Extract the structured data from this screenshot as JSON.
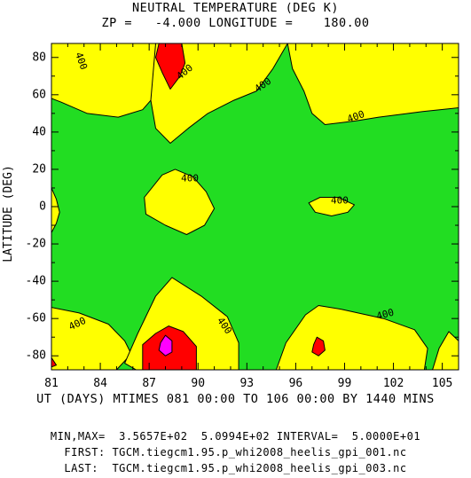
{
  "chart_data": {
    "type": "contour",
    "title": "NEUTRAL TEMPERATURE (DEG K)",
    "subtitle": "ZP =   -4.000 LONGITUDE =    180.00",
    "xlabel": "UT (DAYS) MTIMES 081 00:00 TO 106 00:00 BY 1440 MINS",
    "ylabel": "LATITUDE (DEG)",
    "xlim": [
      81,
      106
    ],
    "ylim": [
      -87.5,
      87.5
    ],
    "x_ticks": [
      81,
      84,
      87,
      90,
      93,
      96,
      99,
      102,
      105
    ],
    "x_tick_labels": [
      "81",
      "84",
      "87",
      "90",
      "93",
      "96",
      "99",
      "102",
      "105"
    ],
    "y_ticks": [
      80,
      60,
      40,
      20,
      0,
      -20,
      -40,
      -60,
      -80
    ],
    "y_tick_labels": [
      "80",
      "60",
      "40",
      "20",
      "0",
      "-20",
      "-40",
      "-60",
      "-80"
    ],
    "contour_interval": 50,
    "levels": [
      {
        "range": "< 400",
        "color": "#22dd22"
      },
      {
        "range": "400-450",
        "color": "#ffff00"
      },
      {
        "range": "450-500",
        "color": "#ff0000"
      },
      {
        "range": "> 500",
        "color": "#ff00ff"
      }
    ],
    "regions": [
      {
        "level": "400-450",
        "polygon": [
          [
            81,
            87.5
          ],
          [
            87.4,
            87.5
          ],
          [
            87.4,
            60
          ],
          [
            86.6,
            52
          ],
          [
            85.1,
            48
          ],
          [
            83.2,
            50
          ],
          [
            81.6,
            56
          ],
          [
            81,
            58
          ]
        ]
      },
      {
        "level": "400-450",
        "polygon": [
          [
            87.4,
            87.5
          ],
          [
            95.5,
            87.5
          ],
          [
            94.6,
            74
          ],
          [
            93.6,
            62
          ],
          [
            92.2,
            57
          ],
          [
            90.6,
            50
          ],
          [
            89.4,
            42
          ],
          [
            88.3,
            34
          ],
          [
            87.4,
            42
          ],
          [
            87.1,
            57
          ]
        ]
      },
      {
        "level": "400-450",
        "polygon": [
          [
            95.5,
            87.5
          ],
          [
            106,
            87.5
          ],
          [
            106,
            53
          ],
          [
            103.8,
            51
          ],
          [
            101.1,
            48
          ],
          [
            99.7,
            46
          ],
          [
            97.8,
            44
          ],
          [
            97,
            50
          ],
          [
            96.5,
            62
          ],
          [
            95.8,
            74
          ]
        ]
      },
      {
        "level": "400-450",
        "polygon": [
          [
            81,
            10
          ],
          [
            81.3,
            4
          ],
          [
            81.5,
            -3
          ],
          [
            81.3,
            -9
          ],
          [
            81,
            -14
          ]
        ]
      },
      {
        "level": "400-450",
        "polygon": [
          [
            86.7,
            5
          ],
          [
            87.8,
            17
          ],
          [
            88.6,
            20
          ],
          [
            89.7,
            16
          ],
          [
            90.5,
            8
          ],
          [
            91.0,
            -1
          ],
          [
            90.4,
            -10
          ],
          [
            89.3,
            -15
          ],
          [
            88.0,
            -10
          ],
          [
            86.8,
            -4
          ]
        ]
      },
      {
        "level": "400-450",
        "polygon": [
          [
            96.8,
            2
          ],
          [
            97.5,
            5
          ],
          [
            98.6,
            5
          ],
          [
            99.6,
            1
          ],
          [
            99.2,
            -3
          ],
          [
            98.2,
            -5
          ],
          [
            97.2,
            -3
          ]
        ]
      },
      {
        "level": "400-450",
        "polygon": [
          [
            81,
            -54
          ],
          [
            82.7,
            -57
          ],
          [
            84.5,
            -63
          ],
          [
            85.5,
            -72
          ],
          [
            85.9,
            -79
          ],
          [
            85,
            -87.5
          ],
          [
            81,
            -87.5
          ]
        ]
      },
      {
        "level": "400-450",
        "polygon": [
          [
            85.5,
            -84
          ],
          [
            86.3,
            -68
          ],
          [
            87.4,
            -48
          ],
          [
            88.4,
            -38
          ],
          [
            90.2,
            -48
          ],
          [
            91.8,
            -59
          ],
          [
            92.5,
            -73
          ],
          [
            92.5,
            -87.5
          ],
          [
            86.2,
            -87.5
          ]
        ]
      },
      {
        "level": "400-450",
        "polygon": [
          [
            94.8,
            -87.5
          ],
          [
            95.4,
            -73
          ],
          [
            96.6,
            -58
          ],
          [
            97.4,
            -53
          ],
          [
            98.8,
            -55
          ],
          [
            101.4,
            -60
          ],
          [
            103.3,
            -66
          ],
          [
            104.1,
            -76
          ],
          [
            103.9,
            -87.5
          ]
        ]
      },
      {
        "level": "400-450",
        "polygon": [
          [
            104.4,
            -87.5
          ],
          [
            104.8,
            -76
          ],
          [
            105.4,
            -67
          ],
          [
            106,
            -72
          ],
          [
            106,
            -87.5
          ]
        ]
      },
      {
        "level": "450-500",
        "polygon": [
          [
            87.6,
            87.5
          ],
          [
            89.0,
            87.5
          ],
          [
            89.2,
            77
          ],
          [
            88.9,
            70
          ],
          [
            88.3,
            63
          ],
          [
            87.8,
            72
          ],
          [
            87.4,
            80
          ]
        ]
      },
      {
        "level": "450-500",
        "polygon": [
          [
            86.6,
            -74
          ],
          [
            87.4,
            -68
          ],
          [
            88.2,
            -64
          ],
          [
            89.1,
            -67
          ],
          [
            89.9,
            -75
          ],
          [
            89.9,
            -87.5
          ],
          [
            86.6,
            -87.5
          ]
        ]
      },
      {
        "level": "450-500",
        "polygon": [
          [
            97.1,
            -74
          ],
          [
            97.3,
            -70
          ],
          [
            97.7,
            -72
          ],
          [
            97.8,
            -77
          ],
          [
            97.4,
            -80
          ],
          [
            97.0,
            -78
          ]
        ]
      },
      {
        "level": "450-500",
        "polygon": [
          [
            81,
            -81
          ],
          [
            81.3,
            -85
          ],
          [
            81,
            -86
          ]
        ]
      },
      {
        "level": "> 500",
        "polygon": [
          [
            87.7,
            -73
          ],
          [
            88.0,
            -69
          ],
          [
            88.4,
            -72
          ],
          [
            88.4,
            -78
          ],
          [
            88.0,
            -80
          ],
          [
            87.6,
            -77
          ]
        ]
      }
    ],
    "annotations": [
      {
        "text": "400",
        "x": 82.8,
        "y": 78,
        "rotate": 70
      },
      {
        "text": "400",
        "x": 89.2,
        "y": 72,
        "rotate": -40
      },
      {
        "text": "400",
        "x": 94.0,
        "y": 65,
        "rotate": -35
      },
      {
        "text": "400",
        "x": 99.7,
        "y": 48,
        "rotate": -20
      },
      {
        "text": "400",
        "x": 89.5,
        "y": 15,
        "rotate": 0
      },
      {
        "text": "400",
        "x": 98.7,
        "y": 3,
        "rotate": 0
      },
      {
        "text": "400",
        "x": 82.6,
        "y": -63,
        "rotate": -25
      },
      {
        "text": "400",
        "x": 91.6,
        "y": -64,
        "rotate": 55
      },
      {
        "text": "400",
        "x": 101.5,
        "y": -58,
        "rotate": -15
      }
    ]
  },
  "footer": {
    "minmax": "MIN,MAX=  3.5657E+02  5.0994E+02 INTERVAL=  5.0000E+01",
    "first": "FIRST: TGCM.tiegcm1.95.p_whi2008_heelis_gpi_001.nc",
    "last": "LAST:  TGCM.tiegcm1.95.p_whi2008_heelis_gpi_003.nc"
  }
}
